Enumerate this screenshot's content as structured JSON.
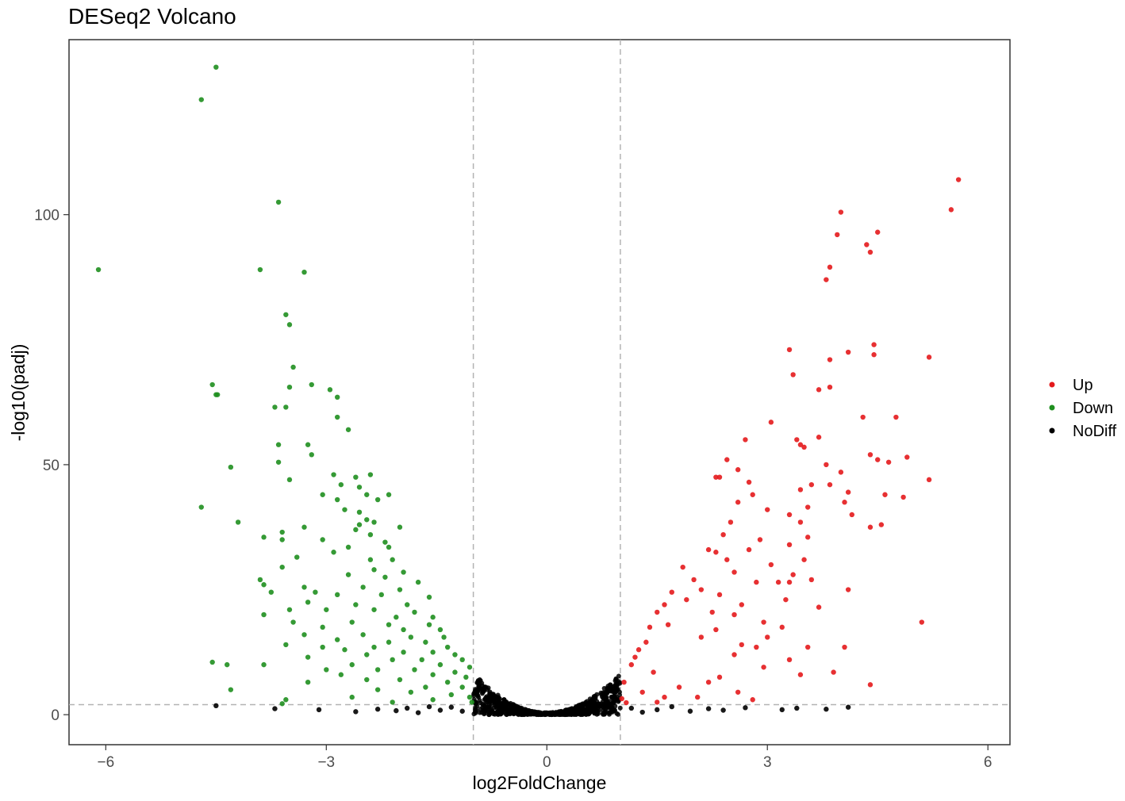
{
  "chart_data": {
    "type": "scatter",
    "title": "DESeq2 Volcano",
    "xlabel": "log2FoldChange",
    "ylabel": "-log10(padj)",
    "xlim": [
      -6.5,
      6.3
    ],
    "ylim": [
      -6,
      135
    ],
    "x_ticks": [
      -6,
      -3,
      0,
      3,
      6
    ],
    "x_tick_labels": [
      "−6",
      "−3",
      "0",
      "3",
      "6"
    ],
    "y_ticks": [
      0,
      50,
      100
    ],
    "y_tick_labels": [
      "0",
      "50",
      "100"
    ],
    "grid": false,
    "thresholds": {
      "log2fc": [
        -1,
        1
      ],
      "neg_log10_padj": 2
    },
    "legend": {
      "position": "right",
      "entries": [
        "Up",
        "Down",
        "NoDiff"
      ]
    },
    "colors": {
      "Up": "#e41a1c",
      "Down": "#1f8f1f",
      "NoDiff": "#000000"
    },
    "series": [
      {
        "name": "Up",
        "color": "#e41a1c",
        "points": [
          [
            5.6,
            107
          ],
          [
            5.5,
            101
          ],
          [
            4.0,
            100.5
          ],
          [
            3.95,
            96
          ],
          [
            4.5,
            96.5
          ],
          [
            4.35,
            94
          ],
          [
            4.4,
            92.5
          ],
          [
            3.85,
            89.5
          ],
          [
            3.8,
            87
          ],
          [
            4.1,
            72.5
          ],
          [
            4.45,
            74
          ],
          [
            4.45,
            72
          ],
          [
            3.3,
            73
          ],
          [
            3.85,
            71
          ],
          [
            5.2,
            71.5
          ],
          [
            3.35,
            68
          ],
          [
            3.85,
            65.5
          ],
          [
            3.7,
            65
          ],
          [
            4.3,
            59.5
          ],
          [
            4.75,
            59.5
          ],
          [
            3.05,
            58.5
          ],
          [
            2.7,
            55
          ],
          [
            3.4,
            55
          ],
          [
            3.45,
            54
          ],
          [
            3.7,
            55.5
          ],
          [
            3.5,
            53.5
          ],
          [
            4.4,
            52
          ],
          [
            4.5,
            51
          ],
          [
            4.9,
            51.5
          ],
          [
            4.65,
            50.5
          ],
          [
            3.8,
            50
          ],
          [
            4.0,
            48.5
          ],
          [
            2.45,
            51
          ],
          [
            2.6,
            49
          ],
          [
            2.3,
            47.5
          ],
          [
            2.35,
            47.5
          ],
          [
            2.75,
            46.5
          ],
          [
            3.45,
            45
          ],
          [
            3.6,
            46
          ],
          [
            3.85,
            46
          ],
          [
            5.2,
            47
          ],
          [
            4.1,
            44.5
          ],
          [
            4.6,
            44
          ],
          [
            4.85,
            43.5
          ],
          [
            2.8,
            44
          ],
          [
            2.6,
            42.5
          ],
          [
            3.55,
            41.5
          ],
          [
            4.05,
            42.5
          ],
          [
            3.0,
            41
          ],
          [
            4.15,
            40
          ],
          [
            3.3,
            40
          ],
          [
            2.5,
            38.5
          ],
          [
            4.4,
            37.5
          ],
          [
            4.55,
            38
          ],
          [
            3.45,
            38.5
          ],
          [
            3.55,
            35.5
          ],
          [
            2.4,
            36
          ],
          [
            2.9,
            35
          ],
          [
            3.3,
            34
          ],
          [
            2.2,
            33
          ],
          [
            2.3,
            32.5
          ],
          [
            2.75,
            33
          ],
          [
            3.5,
            31
          ],
          [
            2.45,
            31
          ],
          [
            3.05,
            30
          ],
          [
            1.85,
            29.5
          ],
          [
            2.55,
            28.5
          ],
          [
            3.35,
            28
          ],
          [
            4.1,
            25
          ],
          [
            2.0,
            27
          ],
          [
            2.85,
            26.5
          ],
          [
            3.15,
            26.5
          ],
          [
            3.3,
            26.5
          ],
          [
            3.6,
            27
          ],
          [
            2.1,
            25
          ],
          [
            2.35,
            24
          ],
          [
            1.7,
            24.5
          ],
          [
            1.9,
            23
          ],
          [
            2.65,
            22
          ],
          [
            3.25,
            23
          ],
          [
            3.7,
            21.5
          ],
          [
            1.6,
            22
          ],
          [
            2.25,
            20.5
          ],
          [
            2.55,
            20
          ],
          [
            1.5,
            20.5
          ],
          [
            2.95,
            18.5
          ],
          [
            5.1,
            18.5
          ],
          [
            1.65,
            18
          ],
          [
            3.2,
            17.5
          ],
          [
            2.3,
            17
          ],
          [
            1.4,
            17.5
          ],
          [
            2.1,
            15.5
          ],
          [
            3.0,
            15.5
          ],
          [
            2.65,
            14
          ],
          [
            1.35,
            14.5
          ],
          [
            2.85,
            13.5
          ],
          [
            4.05,
            13.5
          ],
          [
            3.55,
            13.5
          ],
          [
            1.25,
            13
          ],
          [
            2.55,
            12
          ],
          [
            3.3,
            11
          ],
          [
            1.2,
            11.5
          ],
          [
            1.15,
            10
          ],
          [
            2.95,
            9.5
          ],
          [
            3.45,
            8
          ],
          [
            3.9,
            8.5
          ],
          [
            1.45,
            8.5
          ],
          [
            2.35,
            7.5
          ],
          [
            4.4,
            6
          ],
          [
            2.2,
            6.5
          ],
          [
            1.8,
            5.5
          ],
          [
            2.6,
            4.5
          ],
          [
            2.05,
            3.5
          ],
          [
            2.8,
            3
          ],
          [
            1.6,
            3.5
          ],
          [
            1.3,
            4.5
          ],
          [
            1.05,
            6.5
          ],
          [
            1.02,
            3.2
          ],
          [
            1.08,
            2.4
          ],
          [
            1.5,
            2.5
          ]
        ]
      },
      {
        "name": "Down",
        "color": "#1f8f1f",
        "points": [
          [
            -4.5,
            129.5
          ],
          [
            -4.7,
            123
          ],
          [
            -3.65,
            102.5
          ],
          [
            -6.1,
            89
          ],
          [
            -3.9,
            89
          ],
          [
            -3.3,
            88.5
          ],
          [
            -3.55,
            80
          ],
          [
            -3.5,
            78
          ],
          [
            -3.45,
            69.5
          ],
          [
            -4.55,
            66
          ],
          [
            -4.5,
            64
          ],
          [
            -4.48,
            64
          ],
          [
            -3.2,
            66
          ],
          [
            -2.95,
            65
          ],
          [
            -2.85,
            63.5
          ],
          [
            -3.5,
            65.5
          ],
          [
            -3.7,
            61.5
          ],
          [
            -3.55,
            61.5
          ],
          [
            -2.85,
            59.5
          ],
          [
            -2.7,
            57
          ],
          [
            -3.25,
            54
          ],
          [
            -3.2,
            52
          ],
          [
            -3.65,
            54
          ],
          [
            -3.65,
            50.5
          ],
          [
            -4.3,
            49.5
          ],
          [
            -2.9,
            48
          ],
          [
            -2.6,
            47.5
          ],
          [
            -2.4,
            48
          ],
          [
            -3.5,
            47
          ],
          [
            -2.8,
            46
          ],
          [
            -2.55,
            45.5
          ],
          [
            -2.45,
            44
          ],
          [
            -3.05,
            44
          ],
          [
            -2.85,
            43
          ],
          [
            -2.3,
            43
          ],
          [
            -2.15,
            44
          ],
          [
            -4.7,
            41.5
          ],
          [
            -2.75,
            41
          ],
          [
            -2.55,
            40.5
          ],
          [
            -2.45,
            39
          ],
          [
            -2.35,
            38.5
          ],
          [
            -4.2,
            38.5
          ],
          [
            -3.3,
            37.5
          ],
          [
            -3.6,
            36.5
          ],
          [
            -2.55,
            38
          ],
          [
            -2.6,
            37
          ],
          [
            -2.4,
            36
          ],
          [
            -2.0,
            37.5
          ],
          [
            -3.85,
            35.5
          ],
          [
            -3.6,
            35
          ],
          [
            -3.05,
            35
          ],
          [
            -2.2,
            34.5
          ],
          [
            -2.7,
            33.5
          ],
          [
            -2.9,
            32.5
          ],
          [
            -3.4,
            31.5
          ],
          [
            -2.4,
            31
          ],
          [
            -2.15,
            33.5
          ],
          [
            -2.1,
            31
          ],
          [
            -3.6,
            29.5
          ],
          [
            -2.35,
            29
          ],
          [
            -2.7,
            28
          ],
          [
            -1.95,
            28.5
          ],
          [
            -2.2,
            27.5
          ],
          [
            -1.75,
            26.5
          ],
          [
            -3.9,
            27
          ],
          [
            -3.85,
            26
          ],
          [
            -3.3,
            25.5
          ],
          [
            -2.5,
            25.5
          ],
          [
            -2.0,
            25
          ],
          [
            -3.75,
            24.5
          ],
          [
            -3.15,
            24.5
          ],
          [
            -2.85,
            24
          ],
          [
            -2.25,
            24
          ],
          [
            -1.6,
            23.5
          ],
          [
            -3.25,
            22.5
          ],
          [
            -2.6,
            22
          ],
          [
            -1.9,
            22
          ],
          [
            -3.5,
            21
          ],
          [
            -3.0,
            21
          ],
          [
            -2.35,
            21
          ],
          [
            -1.8,
            20.5
          ],
          [
            -3.85,
            20
          ],
          [
            -2.05,
            19.5
          ],
          [
            -1.55,
            19.5
          ],
          [
            -3.45,
            18.5
          ],
          [
            -2.65,
            18.5
          ],
          [
            -2.15,
            18
          ],
          [
            -1.6,
            18
          ],
          [
            -3.05,
            17.5
          ],
          [
            -1.95,
            17
          ],
          [
            -1.45,
            17
          ],
          [
            -3.3,
            16
          ],
          [
            -2.5,
            16
          ],
          [
            -1.85,
            15.5
          ],
          [
            -1.4,
            15.5
          ],
          [
            -2.85,
            15
          ],
          [
            -2.15,
            14.5
          ],
          [
            -1.65,
            14.5
          ],
          [
            -3.55,
            14
          ],
          [
            -3.05,
            13.5
          ],
          [
            -2.35,
            13.5
          ],
          [
            -1.35,
            13.5
          ],
          [
            -2.75,
            13
          ],
          [
            -1.95,
            12.5
          ],
          [
            -1.55,
            12.5
          ],
          [
            -2.45,
            12
          ],
          [
            -1.25,
            12
          ],
          [
            -3.25,
            11.5
          ],
          [
            -2.1,
            11
          ],
          [
            -1.7,
            11
          ],
          [
            -1.15,
            11
          ],
          [
            -4.55,
            10.5
          ],
          [
            -4.35,
            10
          ],
          [
            -3.85,
            10
          ],
          [
            -2.65,
            10
          ],
          [
            -1.45,
            10
          ],
          [
            -1.05,
            9.5
          ],
          [
            -3.0,
            9
          ],
          [
            -2.3,
            9
          ],
          [
            -1.8,
            9
          ],
          [
            -1.25,
            8.5
          ],
          [
            -2.8,
            8
          ],
          [
            -1.55,
            8
          ],
          [
            -1.1,
            7.5
          ],
          [
            -2.45,
            7
          ],
          [
            -2.0,
            7
          ],
          [
            -1.35,
            6.5
          ],
          [
            -3.25,
            6.5
          ],
          [
            -1.65,
            5.5
          ],
          [
            -1.15,
            5.5
          ],
          [
            -4.3,
            5
          ],
          [
            -2.3,
            5
          ],
          [
            -1.85,
            4.5
          ],
          [
            -1.3,
            4
          ],
          [
            -1.05,
            3.5
          ],
          [
            -2.65,
            3.5
          ],
          [
            -1.55,
            3
          ],
          [
            -3.55,
            3
          ],
          [
            -2.1,
            2.5
          ],
          [
            -1.02,
            2.5
          ],
          [
            -3.6,
            2.2
          ]
        ]
      },
      {
        "name": "NoDiff",
        "color": "#000000",
        "points": [
          [
            -4.5,
            1.8
          ],
          [
            -3.7,
            1.2
          ],
          [
            -3.1,
            1.0
          ],
          [
            -2.6,
            0.6
          ],
          [
            -2.3,
            1.1
          ],
          [
            -2.05,
            0.8
          ],
          [
            -1.9,
            1.3
          ],
          [
            -1.75,
            0.4
          ],
          [
            -1.6,
            1.6
          ],
          [
            -1.45,
            0.9
          ],
          [
            -1.3,
            1.5
          ],
          [
            -1.15,
            0.7
          ],
          [
            4.1,
            1.5
          ],
          [
            3.8,
            1.1
          ],
          [
            3.4,
            1.3
          ],
          [
            3.2,
            1.0
          ],
          [
            2.7,
            1.4
          ],
          [
            2.4,
            0.9
          ],
          [
            2.2,
            1.2
          ],
          [
            1.95,
            0.7
          ],
          [
            1.7,
            1.6
          ],
          [
            1.5,
            1.0
          ],
          [
            1.3,
            0.5
          ],
          [
            1.15,
            1.3
          ]
        ]
      }
    ],
    "nodiff_band": {
      "x_range": [
        -1,
        1
      ],
      "max_neg_log10_padj": 8
    }
  }
}
